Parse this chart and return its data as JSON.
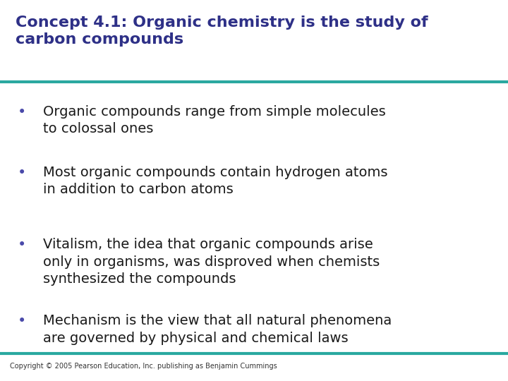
{
  "title_line1": "Concept 4.1: Organic chemistry is the study of",
  "title_line2": "carbon compounds",
  "title_color": "#2E3087",
  "title_fontsize": 16,
  "divider_color": "#2AA8A0",
  "divider_linewidth": 3.0,
  "background_color": "#FFFFFF",
  "bullet_color": "#4A4AAA",
  "bullet_fontsize": 14,
  "bullet_text_color": "#1A1A1A",
  "copyright_text": "Copyright © 2005 Pearson Education, Inc. publishing as Benjamin Cummings",
  "copyright_fontsize": 7,
  "copyright_color": "#333333",
  "bullets": [
    "Organic compounds range from simple molecules\nto colossal ones",
    "Most organic compounds contain hydrogen atoms\nin addition to carbon atoms",
    "Vitalism, the idea that organic compounds arise\nonly in organisms, was disproved when chemists\nsynthesized the compounds",
    "Mechanism is the view that all natural phenomena\nare governed by physical and chemical laws"
  ]
}
